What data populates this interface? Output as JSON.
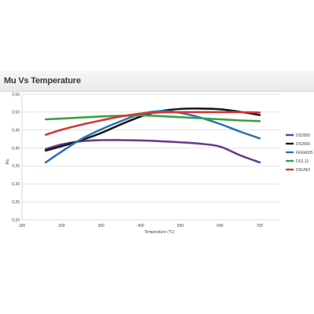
{
  "chart_data": {
    "type": "line",
    "title": "Mu Vs Temperature",
    "xlabel": "Temperature (°C)",
    "ylabel": "Mu",
    "xlim": [
      100,
      750
    ],
    "ylim": [
      0.2,
      0.55
    ],
    "xticks": [
      "100",
      "200",
      "300",
      "400",
      "500",
      "600",
      "700"
    ],
    "yticks": [
      "0,20",
      "0,25",
      "0,30",
      "0,35",
      "0,40",
      "0,45",
      "0,50",
      "0,55"
    ],
    "grid": true,
    "legend_position": "right",
    "series": [
      {
        "name": "DS2500",
        "color": "#6a3d8e",
        "x": [
          160,
          200,
          250,
          300,
          350,
          400,
          450,
          500,
          550,
          600,
          650,
          700
        ],
        "y": [
          0.397,
          0.41,
          0.419,
          0.422,
          0.422,
          0.421,
          0.419,
          0.416,
          0.412,
          0.404,
          0.38,
          0.36
        ]
      },
      {
        "name": "DS3000",
        "color": "#1a1a1a",
        "x": [
          160,
          200,
          250,
          300,
          350,
          400,
          450,
          500,
          550,
          600,
          650,
          700
        ],
        "y": [
          0.393,
          0.405,
          0.422,
          0.442,
          0.466,
          0.488,
          0.503,
          0.509,
          0.51,
          0.508,
          0.501,
          0.492
        ]
      },
      {
        "name": "FERA005",
        "color": "#2e74b5",
        "x": [
          160,
          200,
          250,
          300,
          350,
          400,
          450,
          500,
          550,
          600,
          650,
          700
        ],
        "y": [
          0.36,
          0.39,
          0.425,
          0.452,
          0.475,
          0.495,
          0.503,
          0.498,
          0.485,
          0.467,
          0.446,
          0.427
        ]
      },
      {
        "name": "DS1.11",
        "color": "#3aa146",
        "x": [
          160,
          200,
          250,
          300,
          350,
          400,
          450,
          500,
          550,
          600,
          650,
          700
        ],
        "y": [
          0.48,
          0.482,
          0.485,
          0.488,
          0.49,
          0.491,
          0.489,
          0.486,
          0.483,
          0.48,
          0.477,
          0.475
        ]
      },
      {
        "name": "DSUNO",
        "color": "#d33a36",
        "x": [
          160,
          200,
          250,
          300,
          350,
          400,
          450,
          500,
          550,
          600,
          650,
          700
        ],
        "y": [
          0.437,
          0.451,
          0.465,
          0.477,
          0.488,
          0.496,
          0.499,
          0.5,
          0.5,
          0.5,
          0.5,
          0.499
        ]
      }
    ]
  }
}
